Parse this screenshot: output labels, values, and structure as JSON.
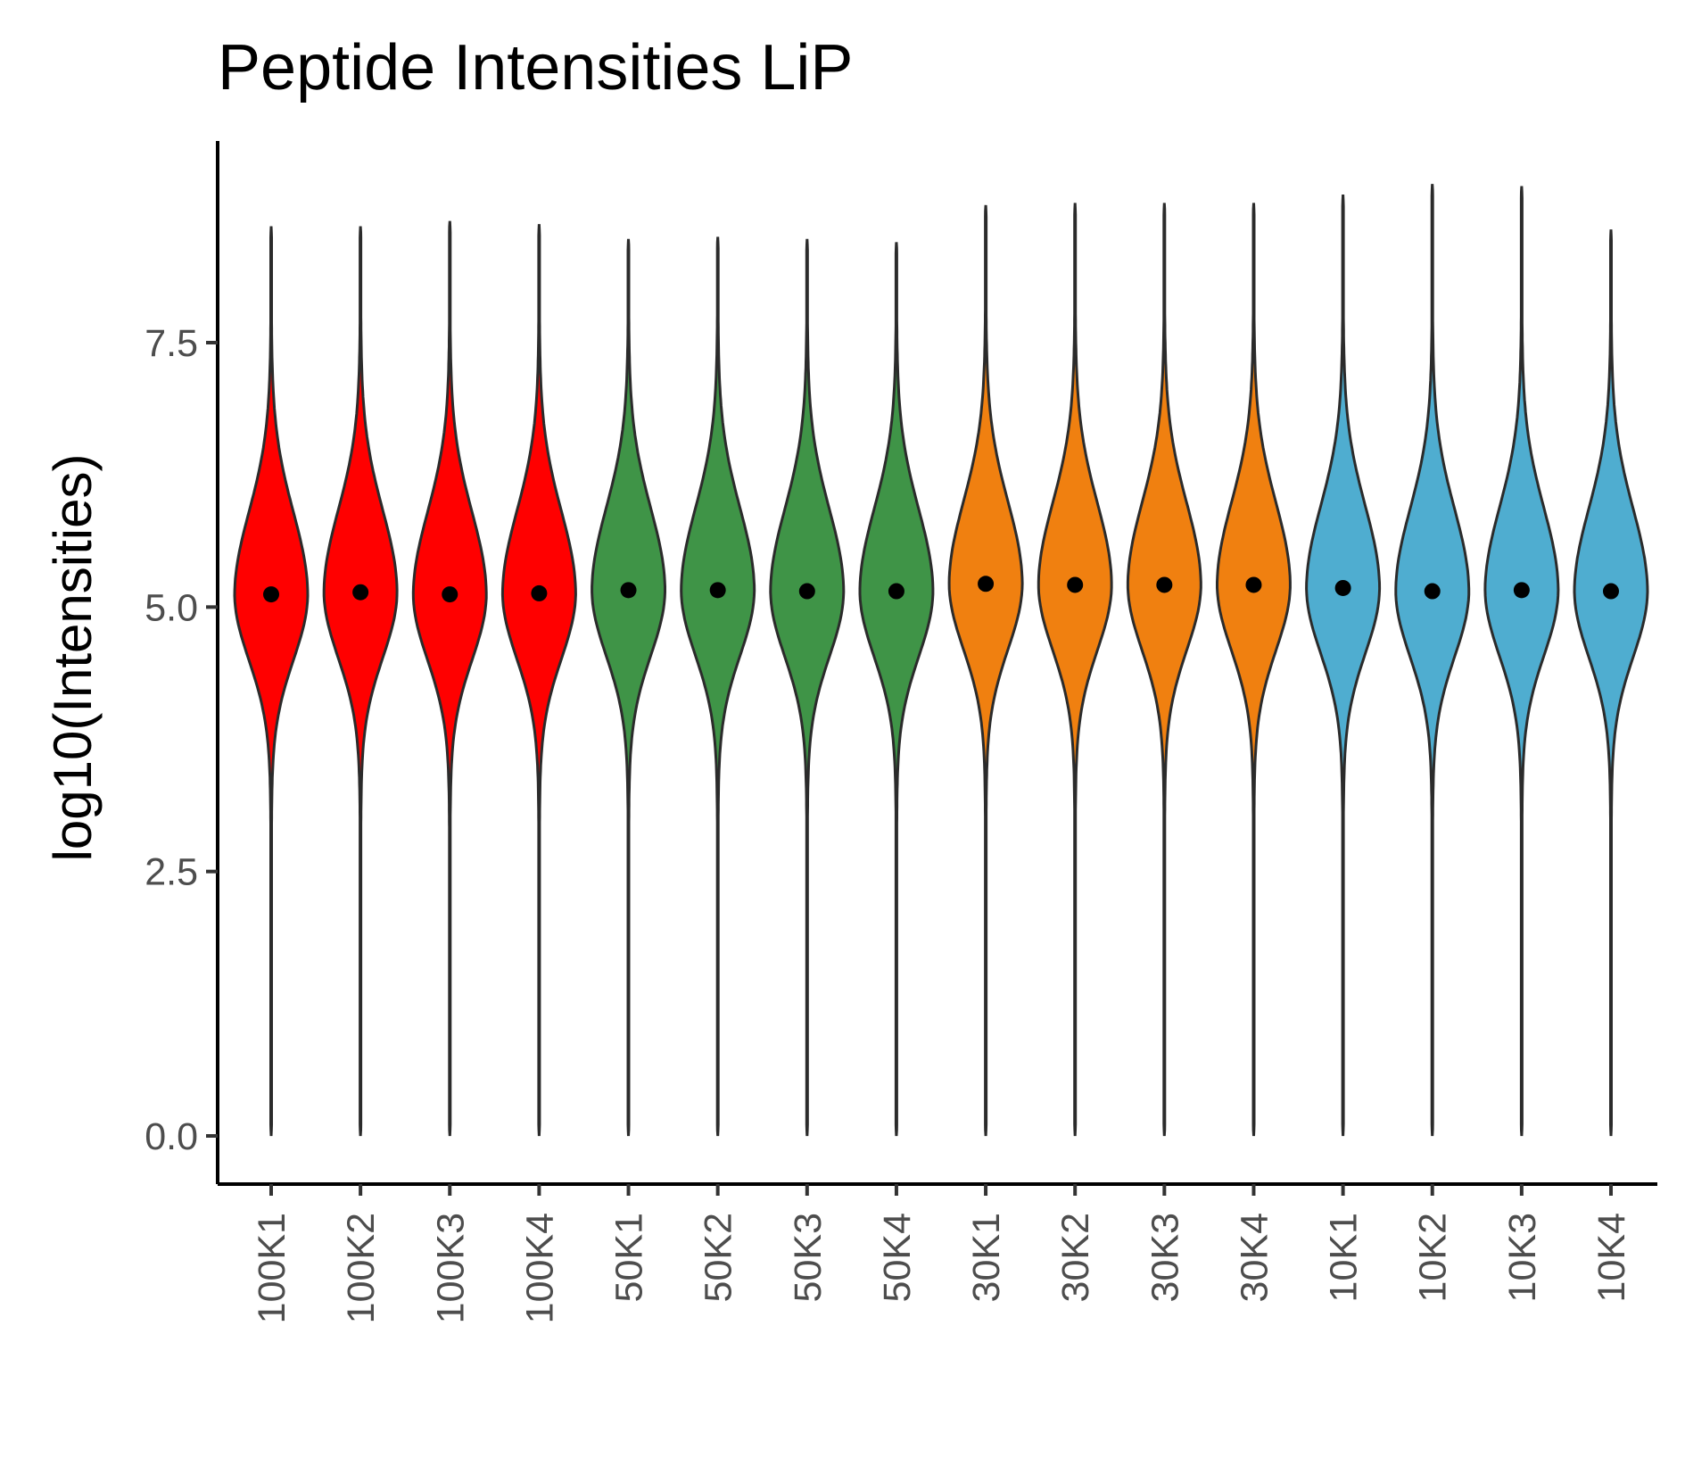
{
  "chart_data": {
    "type": "violin",
    "title": "Peptide Intensities LiP",
    "xlabel": "",
    "ylabel": "log10(Intensities)",
    "ylim": [
      -0.45,
      9.4
    ],
    "yticks": [
      0.0,
      2.5,
      5.0,
      7.5
    ],
    "ytick_labels": [
      "0.0",
      "2.5",
      "5.0",
      "7.5"
    ],
    "grid": false,
    "legend": "none",
    "categories": [
      "100K1",
      "100K2",
      "100K3",
      "100K4",
      "50K1",
      "50K2",
      "50K3",
      "50K4",
      "30K1",
      "30K2",
      "30K3",
      "30K4",
      "10K1",
      "10K2",
      "10K3",
      "10K4"
    ],
    "group_colors": [
      "#ff0000",
      "#ff0000",
      "#ff0000",
      "#ff0000",
      "#3f9447",
      "#3f9447",
      "#3f9447",
      "#3f9447",
      "#f08010",
      "#f08010",
      "#f08010",
      "#f08010",
      "#4fadd0",
      "#4fadd0",
      "#4fadd0",
      "#4fadd0"
    ],
    "series": [
      {
        "values_summary": {
          "min": 0.0,
          "max": 8.6,
          "mean": 5.12
        }
      },
      {
        "values_summary": {
          "min": 0.0,
          "max": 8.6,
          "mean": 5.14
        }
      },
      {
        "values_summary": {
          "min": 0.0,
          "max": 8.65,
          "mean": 5.12
        }
      },
      {
        "values_summary": {
          "min": 0.0,
          "max": 8.62,
          "mean": 5.13
        }
      },
      {
        "values_summary": {
          "min": 0.0,
          "max": 8.48,
          "mean": 5.16
        }
      },
      {
        "values_summary": {
          "min": 0.0,
          "max": 8.5,
          "mean": 5.16
        }
      },
      {
        "values_summary": {
          "min": 0.0,
          "max": 8.48,
          "mean": 5.15
        }
      },
      {
        "values_summary": {
          "min": 0.0,
          "max": 8.45,
          "mean": 5.15
        }
      },
      {
        "values_summary": {
          "min": 0.0,
          "max": 8.8,
          "mean": 5.22
        }
      },
      {
        "values_summary": {
          "min": 0.0,
          "max": 8.82,
          "mean": 5.21
        }
      },
      {
        "values_summary": {
          "min": 0.0,
          "max": 8.82,
          "mean": 5.21
        }
      },
      {
        "values_summary": {
          "min": 0.0,
          "max": 8.82,
          "mean": 5.21
        }
      },
      {
        "values_summary": {
          "min": 0.0,
          "max": 8.9,
          "mean": 5.18
        }
      },
      {
        "values_summary": {
          "min": 0.0,
          "max": 9.0,
          "mean": 5.15
        }
      },
      {
        "values_summary": {
          "min": 0.0,
          "max": 8.98,
          "mean": 5.16
        }
      },
      {
        "values_summary": {
          "min": 0.0,
          "max": 8.57,
          "mean": 5.15
        }
      }
    ]
  }
}
